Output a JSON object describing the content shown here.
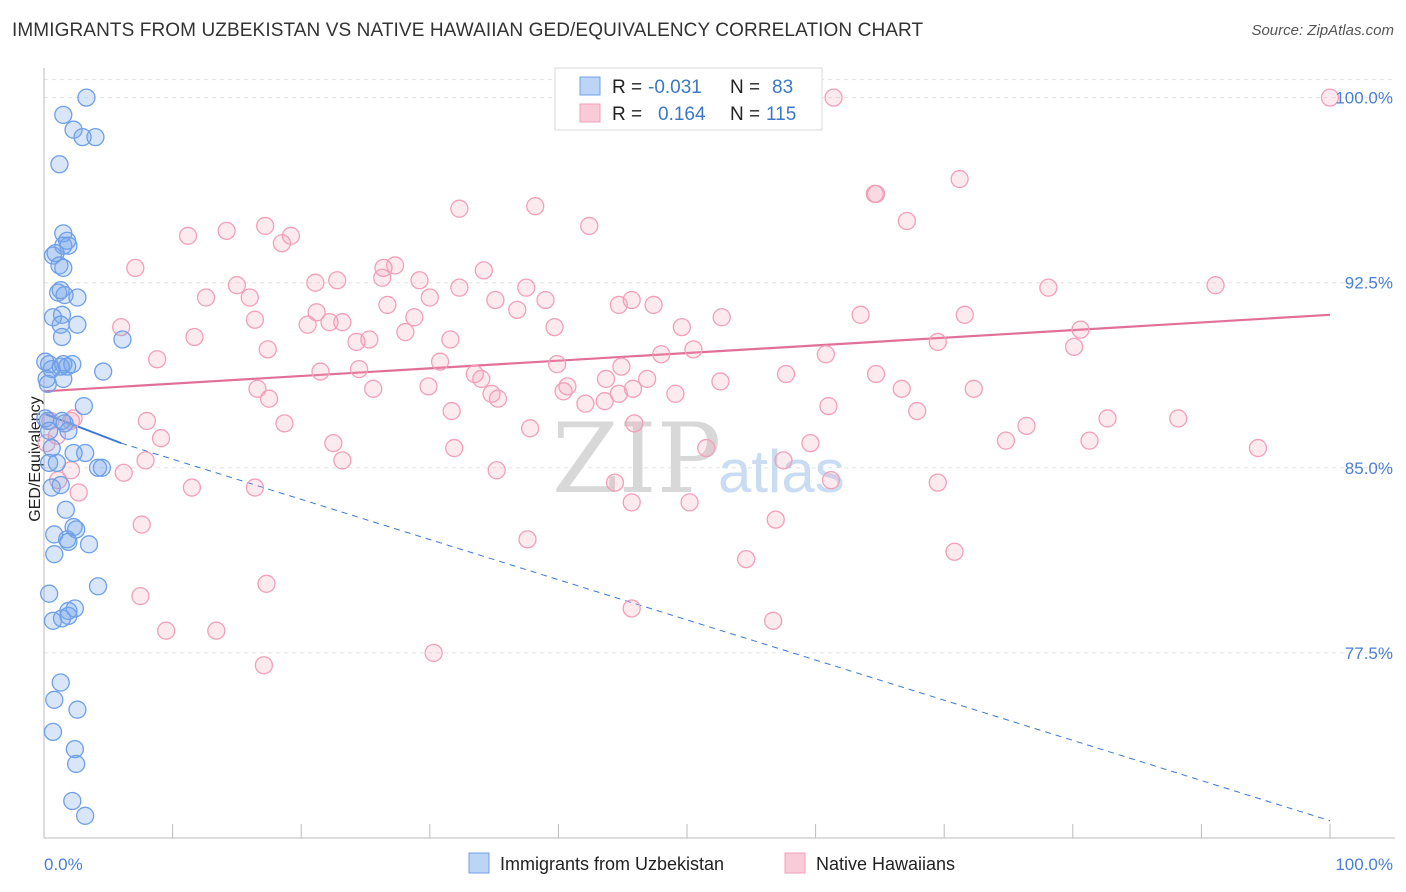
{
  "title": "IMMIGRANTS FROM UZBEKISTAN VS NATIVE HAWAIIAN GED/EQUIVALENCY CORRELATION CHART",
  "source": "Source: ZipAtlas.com",
  "watermark": {
    "zip": "ZIP",
    "atlas": "atlas"
  },
  "legend": {
    "rows": [
      {
        "r_label": "R =",
        "r_value": "-0.031",
        "n_label": "N =",
        "n_value": "83",
        "color": "#6fa0e8"
      },
      {
        "r_label": "R =",
        "r_value": "0.164",
        "n_label": "N =",
        "n_value": "115",
        "color": "#f2a0b8"
      }
    ]
  },
  "chart_data": {
    "type": "scatter",
    "title": "IMMIGRANTS FROM UZBEKISTAN VS NATIVE HAWAIIAN GED/EQUIVALENCY CORRELATION CHART",
    "xlabel": "",
    "ylabel": "GED/Equivalency",
    "xlim": [
      0,
      100
    ],
    "ylim": [
      70.0,
      101.2
    ],
    "x_tick_labels": [
      "0.0%",
      "100.0%"
    ],
    "y_ticks": [
      77.5,
      85.0,
      92.5,
      100.0
    ],
    "y_tick_labels": [
      "77.5%",
      "85.0%",
      "92.5%",
      "100.0%"
    ],
    "grid": true,
    "legend_position": "bottom-center",
    "series": [
      {
        "name": "Immigrants from Uzbekistan",
        "color": "#6fa0e8",
        "trend": {
          "x": [
            0,
            6
          ],
          "y": [
            87.2,
            86.0
          ],
          "dashed_to": [
            100,
            70.7
          ]
        },
        "points": [
          [
            3.3,
            100.0
          ],
          [
            1.5,
            99.3
          ],
          [
            2.3,
            98.7
          ],
          [
            3.0,
            98.4
          ],
          [
            4.0,
            98.4
          ],
          [
            1.2,
            97.3
          ],
          [
            1.5,
            94.5
          ],
          [
            1.5,
            94.0
          ],
          [
            1.8,
            94.2
          ],
          [
            1.9,
            94.0
          ],
          [
            0.7,
            93.6
          ],
          [
            0.9,
            93.7
          ],
          [
            1.2,
            93.2
          ],
          [
            1.5,
            93.1
          ],
          [
            1.1,
            92.1
          ],
          [
            1.3,
            92.2
          ],
          [
            1.6,
            92.0
          ],
          [
            2.6,
            91.9
          ],
          [
            1.4,
            91.2
          ],
          [
            0.7,
            91.1
          ],
          [
            1.3,
            90.8
          ],
          [
            2.6,
            90.8
          ],
          [
            1.4,
            90.3
          ],
          [
            6.1,
            90.2
          ],
          [
            0.1,
            89.3
          ],
          [
            0.4,
            89.2
          ],
          [
            0.6,
            89.0
          ],
          [
            1.3,
            89.1
          ],
          [
            1.5,
            89.2
          ],
          [
            1.8,
            89.1
          ],
          [
            2.2,
            89.2
          ],
          [
            4.6,
            88.9
          ],
          [
            0.2,
            88.6
          ],
          [
            1.5,
            88.6
          ],
          [
            0.3,
            88.4
          ],
          [
            3.1,
            87.5
          ],
          [
            0.1,
            87.0
          ],
          [
            0.3,
            86.9
          ],
          [
            1.4,
            86.9
          ],
          [
            1.6,
            86.8
          ],
          [
            0.4,
            86.5
          ],
          [
            1.9,
            86.5
          ],
          [
            0.6,
            85.8
          ],
          [
            3.2,
            85.6
          ],
          [
            2.3,
            85.6
          ],
          [
            0.4,
            85.2
          ],
          [
            1.0,
            85.2
          ],
          [
            4.5,
            85.0
          ],
          [
            4.2,
            85.0
          ],
          [
            0.6,
            84.2
          ],
          [
            1.3,
            84.3
          ],
          [
            1.7,
            83.3
          ],
          [
            2.3,
            82.6
          ],
          [
            2.5,
            82.5
          ],
          [
            0.8,
            82.3
          ],
          [
            1.8,
            82.1
          ],
          [
            1.9,
            82.0
          ],
          [
            3.5,
            81.9
          ],
          [
            0.8,
            81.5
          ],
          [
            4.2,
            80.2
          ],
          [
            0.4,
            79.9
          ],
          [
            2.4,
            79.3
          ],
          [
            1.9,
            79.2
          ],
          [
            1.9,
            79.0
          ],
          [
            0.7,
            78.8
          ],
          [
            1.4,
            78.9
          ],
          [
            1.3,
            76.3
          ],
          [
            0.8,
            75.6
          ],
          [
            2.6,
            75.2
          ],
          [
            0.7,
            74.3
          ],
          [
            2.4,
            73.6
          ],
          [
            2.5,
            73.0
          ],
          [
            2.2,
            71.5
          ],
          [
            3.2,
            70.9
          ]
        ]
      },
      {
        "name": "Native Hawaiians",
        "color": "#f2a0b8",
        "trend": {
          "x": [
            0,
            100
          ],
          "y": [
            88.1,
            91.2
          ]
        },
        "points": [
          [
            100.0,
            100.0
          ],
          [
            61.4,
            100.0
          ],
          [
            64.6,
            96.1
          ],
          [
            64.7,
            96.1
          ],
          [
            71.2,
            96.7
          ],
          [
            38.2,
            95.6
          ],
          [
            32.3,
            95.5
          ],
          [
            67.1,
            95.0
          ],
          [
            14.2,
            94.6
          ],
          [
            42.4,
            94.8
          ],
          [
            11.2,
            94.4
          ],
          [
            17.2,
            94.8
          ],
          [
            19.2,
            94.4
          ],
          [
            18.5,
            94.1
          ],
          [
            7.1,
            93.1
          ],
          [
            26.4,
            93.1
          ],
          [
            27.3,
            93.2
          ],
          [
            34.2,
            93.0
          ],
          [
            26.3,
            92.7
          ],
          [
            22.8,
            92.6
          ],
          [
            29.2,
            92.6
          ],
          [
            21.1,
            92.5
          ],
          [
            15.0,
            92.4
          ],
          [
            91.1,
            92.4
          ],
          [
            78.1,
            92.3
          ],
          [
            37.5,
            92.3
          ],
          [
            32.3,
            92.3
          ],
          [
            39.0,
            91.8
          ],
          [
            12.6,
            91.9
          ],
          [
            16.0,
            91.9
          ],
          [
            30.0,
            91.9
          ],
          [
            35.1,
            91.8
          ],
          [
            36.8,
            91.4
          ],
          [
            45.7,
            91.8
          ],
          [
            44.7,
            91.6
          ],
          [
            26.7,
            91.6
          ],
          [
            47.4,
            91.6
          ],
          [
            28.8,
            91.1
          ],
          [
            21.2,
            91.3
          ],
          [
            16.4,
            91.0
          ],
          [
            23.2,
            90.9
          ],
          [
            20.5,
            90.8
          ],
          [
            22.2,
            90.9
          ],
          [
            52.7,
            91.1
          ],
          [
            63.5,
            91.2
          ],
          [
            39.7,
            90.7
          ],
          [
            49.6,
            90.7
          ],
          [
            6.0,
            90.7
          ],
          [
            71.6,
            91.2
          ],
          [
            80.6,
            90.6
          ],
          [
            28.1,
            90.5
          ],
          [
            11.7,
            90.3
          ],
          [
            25.3,
            90.2
          ],
          [
            31.6,
            90.2
          ],
          [
            24.3,
            90.1
          ],
          [
            69.5,
            90.1
          ],
          [
            17.4,
            89.8
          ],
          [
            50.5,
            89.8
          ],
          [
            48.0,
            89.6
          ],
          [
            60.8,
            89.6
          ],
          [
            80.1,
            89.9
          ],
          [
            30.8,
            89.3
          ],
          [
            39.9,
            89.2
          ],
          [
            44.9,
            89.1
          ],
          [
            8.8,
            89.4
          ],
          [
            24.5,
            89.0
          ],
          [
            21.5,
            88.9
          ],
          [
            33.5,
            88.8
          ],
          [
            34.0,
            88.6
          ],
          [
            43.7,
            88.6
          ],
          [
            46.9,
            88.6
          ],
          [
            52.6,
            88.5
          ],
          [
            57.7,
            88.8
          ],
          [
            64.7,
            88.8
          ],
          [
            29.9,
            88.3
          ],
          [
            40.7,
            88.3
          ],
          [
            16.6,
            88.2
          ],
          [
            25.6,
            88.2
          ],
          [
            34.8,
            88.0
          ],
          [
            40.4,
            88.1
          ],
          [
            44.7,
            88.0
          ],
          [
            45.8,
            88.2
          ],
          [
            49.1,
            88.0
          ],
          [
            66.7,
            88.2
          ],
          [
            72.3,
            88.2
          ],
          [
            17.5,
            87.8
          ],
          [
            35.3,
            87.8
          ],
          [
            42.1,
            87.6
          ],
          [
            43.6,
            87.7
          ],
          [
            61.0,
            87.5
          ],
          [
            67.9,
            87.3
          ],
          [
            31.7,
            87.3
          ],
          [
            2.3,
            87.0
          ],
          [
            0.5,
            86.9
          ],
          [
            2.1,
            86.9
          ],
          [
            8.0,
            86.9
          ],
          [
            18.7,
            86.8
          ],
          [
            37.8,
            86.6
          ],
          [
            45.9,
            86.8
          ],
          [
            76.4,
            86.7
          ],
          [
            82.7,
            87.0
          ],
          [
            88.2,
            87.0
          ],
          [
            1.0,
            86.3
          ],
          [
            0.2,
            86.0
          ],
          [
            9.1,
            86.2
          ],
          [
            22.5,
            86.0
          ],
          [
            31.9,
            85.8
          ],
          [
            51.5,
            85.8
          ],
          [
            59.6,
            86.0
          ],
          [
            74.8,
            86.1
          ],
          [
            81.3,
            86.1
          ],
          [
            94.4,
            85.8
          ],
          [
            7.9,
            85.3
          ],
          [
            23.2,
            85.3
          ],
          [
            57.5,
            85.3
          ],
          [
            2.1,
            84.9
          ],
          [
            1.1,
            84.5
          ],
          [
            6.2,
            84.8
          ],
          [
            35.2,
            84.9
          ],
          [
            44.4,
            84.4
          ],
          [
            61.2,
            84.5
          ],
          [
            69.5,
            84.4
          ],
          [
            11.5,
            84.2
          ],
          [
            16.4,
            84.2
          ],
          [
            2.7,
            84.0
          ],
          [
            45.7,
            83.6
          ],
          [
            50.2,
            83.6
          ],
          [
            56.9,
            82.9
          ],
          [
            7.6,
            82.7
          ],
          [
            37.6,
            82.1
          ],
          [
            54.6,
            81.3
          ],
          [
            70.8,
            81.6
          ],
          [
            17.3,
            80.3
          ],
          [
            7.5,
            79.8
          ],
          [
            45.7,
            79.3
          ],
          [
            56.7,
            78.8
          ],
          [
            9.5,
            78.4
          ],
          [
            13.4,
            78.4
          ],
          [
            30.3,
            77.5
          ],
          [
            17.1,
            77.0
          ]
        ]
      }
    ]
  }
}
